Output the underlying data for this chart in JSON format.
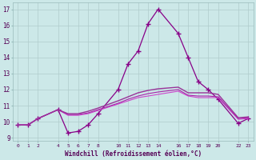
{
  "bg_color": "#cce8e8",
  "grid_color": "#b0cccc",
  "xlabel": "Windchill (Refroidissement éolien,°C)",
  "xlim": [
    -0.5,
    23.5
  ],
  "ylim": [
    8.8,
    17.4
  ],
  "yticks": [
    9,
    10,
    11,
    12,
    13,
    14,
    15,
    16,
    17
  ],
  "xticks": [
    0,
    1,
    2,
    4,
    5,
    6,
    7,
    8,
    10,
    11,
    12,
    13,
    14,
    16,
    17,
    18,
    19,
    20,
    22,
    23
  ],
  "series": [
    {
      "x": [
        0,
        1,
        2,
        4,
        5,
        6,
        7,
        8,
        10,
        11,
        12,
        13,
        14,
        16,
        17,
        18,
        19,
        20,
        22,
        23
      ],
      "y": [
        9.8,
        9.8,
        10.2,
        10.75,
        9.3,
        9.4,
        9.8,
        10.5,
        12.0,
        13.6,
        14.4,
        16.1,
        17.0,
        15.5,
        14.0,
        12.5,
        12.0,
        11.4,
        9.9,
        10.2
      ],
      "color": "#880088",
      "marker": "+",
      "lw": 0.9,
      "ms": 4
    },
    {
      "x": [
        0,
        1,
        2,
        4,
        5,
        6,
        7,
        8,
        10,
        11,
        12,
        13,
        14,
        16,
        17,
        18,
        19,
        20,
        22,
        23
      ],
      "y": [
        9.8,
        9.8,
        10.2,
        10.75,
        10.4,
        10.4,
        10.5,
        10.7,
        11.1,
        11.3,
        11.5,
        11.6,
        11.7,
        11.9,
        11.6,
        11.5,
        11.5,
        11.5,
        10.15,
        10.2
      ],
      "color": "#cc44cc",
      "marker": null,
      "lw": 0.8,
      "ms": 0
    },
    {
      "x": [
        0,
        1,
        2,
        4,
        5,
        6,
        7,
        8,
        10,
        11,
        12,
        13,
        14,
        16,
        17,
        18,
        19,
        20,
        22,
        23
      ],
      "y": [
        9.8,
        9.8,
        10.2,
        10.75,
        10.45,
        10.45,
        10.55,
        10.75,
        11.15,
        11.4,
        11.6,
        11.75,
        11.85,
        12.0,
        11.65,
        11.6,
        11.6,
        11.55,
        10.2,
        10.25
      ],
      "color": "#aa22aa",
      "marker": null,
      "lw": 0.8,
      "ms": 0
    },
    {
      "x": [
        0,
        1,
        2,
        4,
        5,
        6,
        7,
        8,
        10,
        11,
        12,
        13,
        14,
        16,
        17,
        18,
        19,
        20,
        22,
        23
      ],
      "y": [
        9.8,
        9.8,
        10.2,
        10.75,
        10.5,
        10.5,
        10.65,
        10.85,
        11.3,
        11.55,
        11.8,
        11.95,
        12.05,
        12.15,
        11.8,
        11.8,
        11.8,
        11.7,
        10.25,
        10.3
      ],
      "color": "#993399",
      "marker": null,
      "lw": 1.0,
      "ms": 0
    }
  ]
}
